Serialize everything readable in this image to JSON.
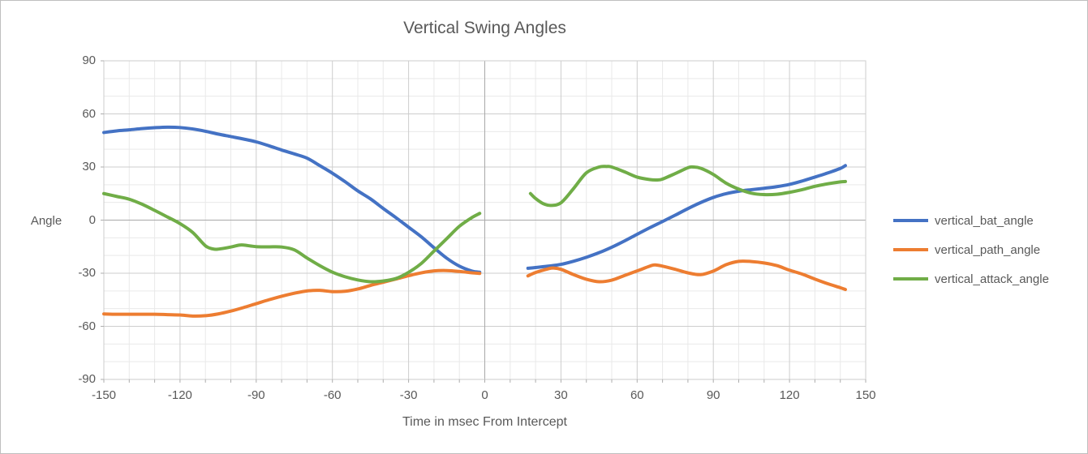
{
  "chart_data": {
    "type": "line",
    "title": "Vertical Swing Angles",
    "xlabel": "Time in msec From Intercept",
    "ylabel": "Angle",
    "xlim": [
      -150,
      150
    ],
    "ylim": [
      -90,
      90
    ],
    "x_ticks": [
      -150,
      -120,
      -90,
      -60,
      -30,
      0,
      30,
      60,
      90,
      120,
      150
    ],
    "y_ticks": [
      90,
      60,
      30,
      0,
      -30,
      -60,
      -90
    ],
    "x_minor_step": 10,
    "y_minor_step": 10,
    "x_major_step": 30,
    "y_major_step": 30,
    "grid": true,
    "legend_position": "right",
    "colors": {
      "grid_minor": "#e9e9e9",
      "grid_major": "#cdcdcd",
      "zero_axis": "#a9a9a9",
      "plot_border": "#cdcdcd",
      "tick": "#adadad",
      "text": "#595959"
    },
    "series": [
      {
        "name": "vertical_bat_angle",
        "color": "#4472C4",
        "segments": [
          [
            [
              -150,
              49.5
            ],
            [
              -145,
              50.4
            ],
            [
              -140,
              51.0
            ],
            [
              -135,
              51.7
            ],
            [
              -130,
              52.2
            ],
            [
              -125,
              52.5
            ],
            [
              -120,
              52.3
            ],
            [
              -115,
              51.5
            ],
            [
              -110,
              50.2
            ],
            [
              -105,
              48.6
            ],
            [
              -100,
              47.2
            ],
            [
              -95,
              45.8
            ],
            [
              -90,
              44.2
            ],
            [
              -85,
              42.0
            ],
            [
              -80,
              39.6
            ],
            [
              -75,
              37.4
            ],
            [
              -70,
              35.0
            ],
            [
              -65,
              30.8
            ],
            [
              -60,
              26.5
            ],
            [
              -55,
              21.7
            ],
            [
              -50,
              16.5
            ],
            [
              -45,
              12.0
            ],
            [
              -40,
              6.6
            ],
            [
              -35,
              1.4
            ],
            [
              -30,
              -4.0
            ],
            [
              -25,
              -9.4
            ],
            [
              -20,
              -15.6
            ],
            [
              -15,
              -21.5
            ],
            [
              -10,
              -26.0
            ],
            [
              -5,
              -28.8
            ],
            [
              -2,
              -29.4
            ]
          ],
          [
            [
              17,
              -27.2
            ],
            [
              20,
              -26.8
            ],
            [
              25,
              -26.0
            ],
            [
              30,
              -25.0
            ],
            [
              35,
              -23.2
            ],
            [
              40,
              -21.0
            ],
            [
              45,
              -18.4
            ],
            [
              50,
              -15.3
            ],
            [
              55,
              -11.8
            ],
            [
              60,
              -8.0
            ],
            [
              65,
              -4.3
            ],
            [
              70,
              -0.8
            ],
            [
              75,
              2.8
            ],
            [
              80,
              6.5
            ],
            [
              85,
              9.9
            ],
            [
              90,
              12.8
            ],
            [
              95,
              14.9
            ],
            [
              100,
              16.3
            ],
            [
              105,
              17.2
            ],
            [
              110,
              18.0
            ],
            [
              115,
              18.9
            ],
            [
              120,
              20.2
            ],
            [
              125,
              22.1
            ],
            [
              130,
              24.3
            ],
            [
              135,
              26.6
            ],
            [
              140,
              29.2
            ],
            [
              142,
              30.8
            ]
          ]
        ]
      },
      {
        "name": "vertical_path_angle",
        "color": "#ED7D31",
        "segments": [
          [
            [
              -150,
              -53.0
            ],
            [
              -145,
              -53.2
            ],
            [
              -140,
              -53.2
            ],
            [
              -135,
              -53.2
            ],
            [
              -130,
              -53.2
            ],
            [
              -125,
              -53.4
            ],
            [
              -120,
              -53.6
            ],
            [
              -115,
              -54.2
            ],
            [
              -110,
              -54.0
            ],
            [
              -105,
              -53.0
            ],
            [
              -100,
              -51.4
            ],
            [
              -95,
              -49.4
            ],
            [
              -90,
              -47.2
            ],
            [
              -85,
              -45.0
            ],
            [
              -80,
              -43.0
            ],
            [
              -75,
              -41.3
            ],
            [
              -70,
              -40.0
            ],
            [
              -65,
              -39.7
            ],
            [
              -60,
              -40.4
            ],
            [
              -55,
              -40.2
            ],
            [
              -50,
              -38.9
            ],
            [
              -45,
              -36.9
            ],
            [
              -40,
              -35.1
            ],
            [
              -35,
              -33.3
            ],
            [
              -30,
              -31.4
            ],
            [
              -25,
              -29.8
            ],
            [
              -20,
              -28.7
            ],
            [
              -15,
              -28.5
            ],
            [
              -10,
              -29.0
            ],
            [
              -5,
              -29.8
            ],
            [
              -2,
              -30.1
            ]
          ],
          [
            [
              17,
              -31.5
            ],
            [
              20,
              -29.6
            ],
            [
              25,
              -27.5
            ],
            [
              27,
              -27.1
            ],
            [
              30,
              -27.8
            ],
            [
              35,
              -30.8
            ],
            [
              40,
              -33.4
            ],
            [
              45,
              -34.8
            ],
            [
              50,
              -33.9
            ],
            [
              55,
              -31.3
            ],
            [
              60,
              -28.7
            ],
            [
              65,
              -26.0
            ],
            [
              67,
              -25.3
            ],
            [
              70,
              -26.0
            ],
            [
              75,
              -27.8
            ],
            [
              80,
              -29.8
            ],
            [
              85,
              -30.8
            ],
            [
              90,
              -28.8
            ],
            [
              95,
              -25.2
            ],
            [
              100,
              -23.3
            ],
            [
              105,
              -23.4
            ],
            [
              110,
              -24.2
            ],
            [
              115,
              -25.7
            ],
            [
              120,
              -28.3
            ],
            [
              125,
              -30.5
            ],
            [
              130,
              -33.3
            ],
            [
              135,
              -35.9
            ],
            [
              140,
              -38.2
            ],
            [
              142,
              -39.2
            ]
          ]
        ]
      },
      {
        "name": "vertical_attack_angle",
        "color": "#70AD47",
        "segments": [
          [
            [
              -150,
              15.0
            ],
            [
              -145,
              13.4
            ],
            [
              -140,
              11.8
            ],
            [
              -135,
              9.0
            ],
            [
              -130,
              5.5
            ],
            [
              -125,
              1.8
            ],
            [
              -120,
              -2.0
            ],
            [
              -115,
              -7.0
            ],
            [
              -110,
              -14.5
            ],
            [
              -107,
              -16.3
            ],
            [
              -105,
              -16.4
            ],
            [
              -100,
              -15.2
            ],
            [
              -97,
              -14.2
            ],
            [
              -95,
              -14.1
            ],
            [
              -90,
              -15.0
            ],
            [
              -85,
              -15.1
            ],
            [
              -80,
              -15.2
            ],
            [
              -75,
              -16.8
            ],
            [
              -70,
              -21.4
            ],
            [
              -65,
              -25.7
            ],
            [
              -60,
              -29.4
            ],
            [
              -55,
              -32.0
            ],
            [
              -50,
              -33.8
            ],
            [
              -45,
              -34.8
            ],
            [
              -40,
              -34.4
            ],
            [
              -35,
              -33.0
            ],
            [
              -30,
              -29.5
            ],
            [
              -25,
              -24.5
            ],
            [
              -20,
              -17.5
            ],
            [
              -15,
              -10.5
            ],
            [
              -10,
              -3.5
            ],
            [
              -5,
              1.5
            ],
            [
              -2,
              3.8
            ]
          ],
          [
            [
              18,
              15.0
            ],
            [
              20,
              12.2
            ],
            [
              23,
              9.3
            ],
            [
              26,
              8.3
            ],
            [
              30,
              9.8
            ],
            [
              35,
              17.9
            ],
            [
              40,
              26.7
            ],
            [
              45,
              30.0
            ],
            [
              48,
              30.3
            ],
            [
              50,
              30.0
            ],
            [
              55,
              27.3
            ],
            [
              60,
              24.3
            ],
            [
              65,
              22.9
            ],
            [
              68,
              22.7
            ],
            [
              70,
              23.2
            ],
            [
              75,
              26.3
            ],
            [
              80,
              29.6
            ],
            [
              82,
              30.0
            ],
            [
              85,
              29.3
            ],
            [
              90,
              25.8
            ],
            [
              95,
              20.9
            ],
            [
              100,
              17.5
            ],
            [
              105,
              15.2
            ],
            [
              110,
              14.4
            ],
            [
              115,
              14.6
            ],
            [
              120,
              15.7
            ],
            [
              125,
              17.2
            ],
            [
              130,
              19.1
            ],
            [
              135,
              20.5
            ],
            [
              140,
              21.6
            ],
            [
              142,
              21.8
            ]
          ]
        ]
      }
    ]
  },
  "legend": {
    "items": [
      {
        "label": "vertical_bat_angle"
      },
      {
        "label": "vertical_path_angle"
      },
      {
        "label": "vertical_attack_angle"
      }
    ]
  }
}
